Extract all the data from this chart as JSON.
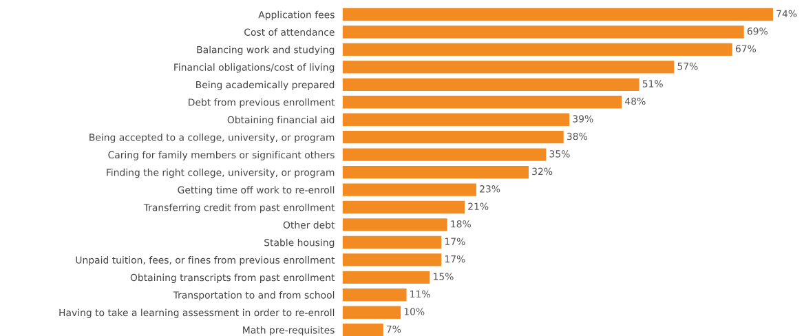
{
  "chart_data": {
    "type": "bar",
    "orientation": "horizontal",
    "categories": [
      "Application fees",
      "Cost of attendance",
      "Balancing work and studying",
      "Financial obligations/cost of living",
      "Being academically prepared",
      "Debt from previous enrollment",
      "Obtaining financial aid",
      "Being accepted to a college, university, or program",
      "Caring for family members or significant others",
      "Finding the right college, university, or program",
      "Getting time off work to re-enroll",
      "Transferring credit from past enrollment",
      "Other debt",
      "Stable housing",
      "Unpaid tuition, fees, or fines from previous enrollment",
      "Obtaining transcripts from past enrollment",
      "Transportation to and from school",
      "Having to take a learning assessment in order to re-enroll",
      "Math pre-requisites"
    ],
    "values": [
      74,
      69,
      67,
      57,
      51,
      48,
      39,
      38,
      35,
      32,
      23,
      21,
      18,
      17,
      17,
      15,
      11,
      10,
      7
    ],
    "value_labels": [
      "74%",
      "69%",
      "67%",
      "57%",
      "51%",
      "48%",
      "39%",
      "38%",
      "35%",
      "32%",
      "23%",
      "21%",
      "18%",
      "17%",
      "17%",
      "15%",
      "11%",
      "10%",
      "7%"
    ],
    "color": "#f28b22",
    "grid": false,
    "legend": false
  }
}
